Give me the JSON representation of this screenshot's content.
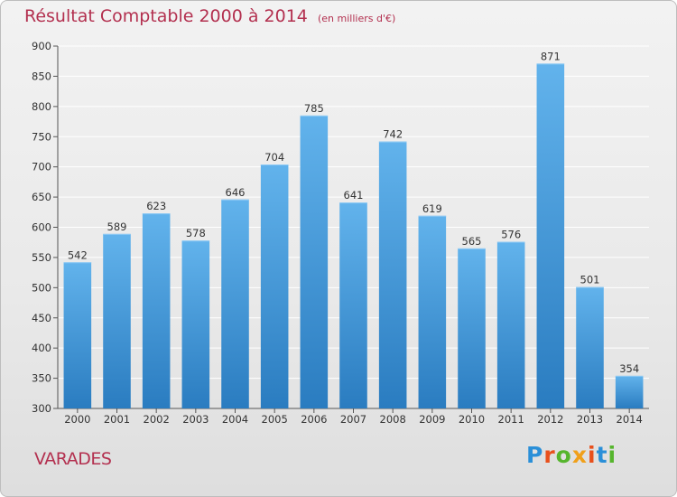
{
  "title": {
    "main": "Résultat Comptable 2000 à 2014",
    "unit": "(en milliers d'€)"
  },
  "footer": {
    "town": "VARADES",
    "logo_text": "Proxiti",
    "logo_colors": [
      "#2a8fd8",
      "#e8501c",
      "#56b52d",
      "#f0a01a",
      "#e8501c",
      "#2a8fd8",
      "#56b52d"
    ]
  },
  "colors": {
    "title": "#b3304f",
    "bar_top": "#62b3ec",
    "bar_bottom": "#2a7cc0",
    "grid": "#ffffff",
    "axis_text": "#333333"
  },
  "chart_data": {
    "type": "bar",
    "title": "Résultat Comptable 2000 à 2014",
    "subtitle": "(en milliers d'€)",
    "xlabel": "",
    "ylabel": "",
    "categories": [
      "2000",
      "2001",
      "2002",
      "2003",
      "2004",
      "2005",
      "2006",
      "2007",
      "2008",
      "2009",
      "2010",
      "2011",
      "2012",
      "2013",
      "2014"
    ],
    "values": [
      542,
      589,
      623,
      578,
      646,
      704,
      785,
      641,
      742,
      619,
      565,
      576,
      871,
      501,
      354
    ],
    "ylim": [
      300,
      900
    ],
    "yticks": [
      300,
      350,
      400,
      450,
      500,
      550,
      600,
      650,
      700,
      750,
      800,
      850,
      900
    ],
    "grid": true,
    "legend": "none",
    "data_labels": true
  }
}
